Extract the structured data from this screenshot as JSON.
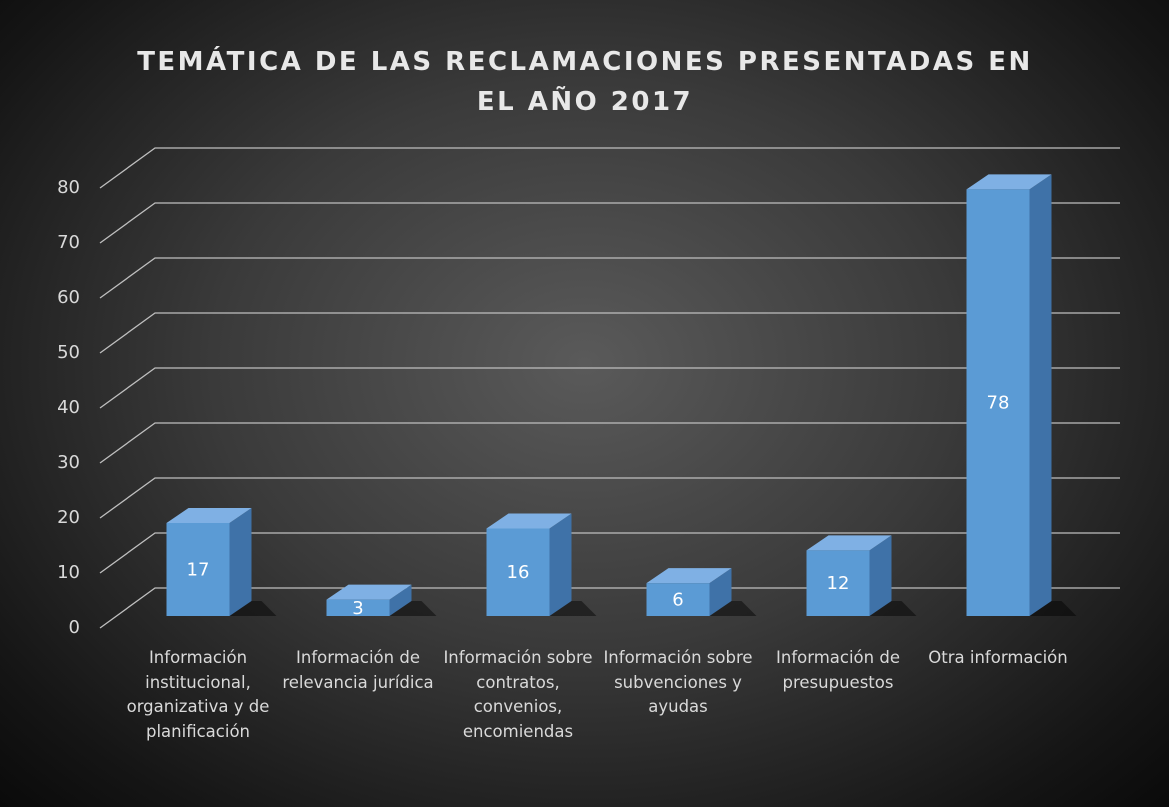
{
  "chart_data": {
    "type": "bar3d",
    "title": "TEMÁTICA DE LAS RECLAMACIONES PRESENTADAS EN EL AÑO 2017",
    "categories": [
      "Información institucional, organizativa y de planificación",
      "Información de relevancia jurídica",
      "Información sobre contratos, convenios, encomiendas",
      "Información sobre subvenciones y ayudas",
      "Información de presupuestos",
      "Otra información"
    ],
    "values": [
      17,
      3,
      16,
      6,
      12,
      78
    ],
    "color": "#5b9bd5",
    "ylim": [
      0,
      80
    ],
    "yticks": [
      0,
      10,
      20,
      30,
      40,
      50,
      60,
      70,
      80
    ],
    "grid": true
  }
}
